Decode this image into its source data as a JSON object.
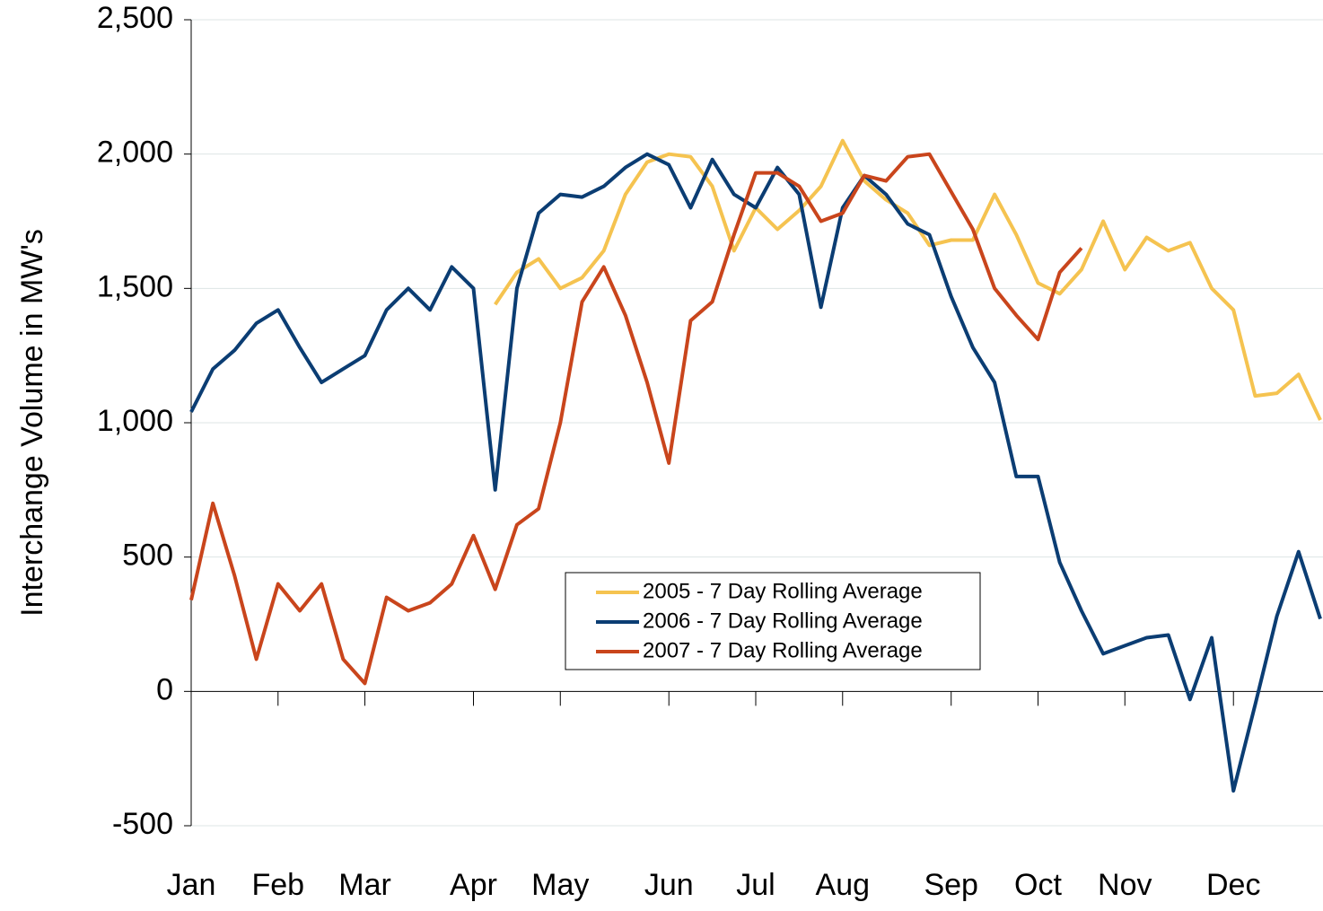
{
  "chart_data": {
    "type": "line",
    "y_label": "Interchange Volume in MW's",
    "categories": [
      "Jan",
      null,
      null,
      null,
      "Feb",
      null,
      null,
      null,
      "Mar",
      null,
      null,
      null,
      null,
      "Apr",
      null,
      null,
      null,
      "May",
      null,
      null,
      null,
      null,
      "Jun",
      null,
      null,
      null,
      "Jul",
      null,
      null,
      null,
      "Aug",
      null,
      null,
      null,
      null,
      "Sep",
      null,
      null,
      null,
      "Oct",
      null,
      null,
      null,
      "Nov",
      null,
      null,
      null,
      null,
      "Dec",
      null,
      null,
      null,
      null
    ],
    "series": [
      {
        "name": "2005 - 7 Day Rolling Average",
        "color": "#f5c350",
        "values": [
          null,
          null,
          null,
          null,
          null,
          null,
          null,
          null,
          null,
          null,
          null,
          null,
          null,
          null,
          1440,
          1560,
          1610,
          1500,
          1540,
          1640,
          1850,
          1970,
          2000,
          1990,
          1880,
          1640,
          1800,
          1720,
          1790,
          1880,
          2050,
          1900,
          1830,
          1780,
          1660,
          1680,
          1680,
          1850,
          1700,
          1520,
          1480,
          1570,
          1750,
          1570,
          1690,
          1640,
          1670,
          1500,
          1420,
          1100,
          1110,
          1180,
          1010
        ]
      },
      {
        "name": "2006 - 7 Day Rolling Average",
        "color": "#0b3d73",
        "values": [
          1040,
          1200,
          1270,
          1370,
          1420,
          1280,
          1150,
          1200,
          1250,
          1420,
          1500,
          1420,
          1580,
          1500,
          750,
          1500,
          1780,
          1850,
          1840,
          1880,
          1950,
          2000,
          1960,
          1800,
          1980,
          1850,
          1800,
          1950,
          1850,
          1430,
          1800,
          1920,
          1850,
          1740,
          1700,
          1470,
          1280,
          1150,
          800,
          800,
          480,
          300,
          140,
          170,
          200,
          210,
          -30,
          200,
          -370,
          -50,
          280,
          520,
          270
        ]
      },
      {
        "name": "2007 - 7 Day Rolling Average",
        "color": "#c9451c",
        "values": [
          340,
          700,
          430,
          120,
          400,
          300,
          400,
          120,
          30,
          350,
          300,
          330,
          400,
          580,
          380,
          620,
          680,
          1000,
          1450,
          1580,
          1400,
          1150,
          850,
          1380,
          1450,
          1700,
          1930,
          1930,
          1880,
          1750,
          1780,
          1920,
          1900,
          1990,
          2000,
          1860,
          1720,
          1500,
          1400,
          1310,
          1560,
          1650,
          null,
          null,
          null,
          null,
          null,
          null,
          null,
          null,
          null,
          null,
          null
        ]
      }
    ],
    "ylim": [
      -500,
      2500
    ],
    "yticks": [
      -500,
      0,
      500,
      {
        "value": 1000,
        "label": "1,000"
      },
      {
        "value": 1500,
        "label": "1,500"
      },
      {
        "value": 2000,
        "label": "2,000"
      },
      {
        "value": 2500,
        "label": "2,500"
      }
    ],
    "grid": true
  }
}
